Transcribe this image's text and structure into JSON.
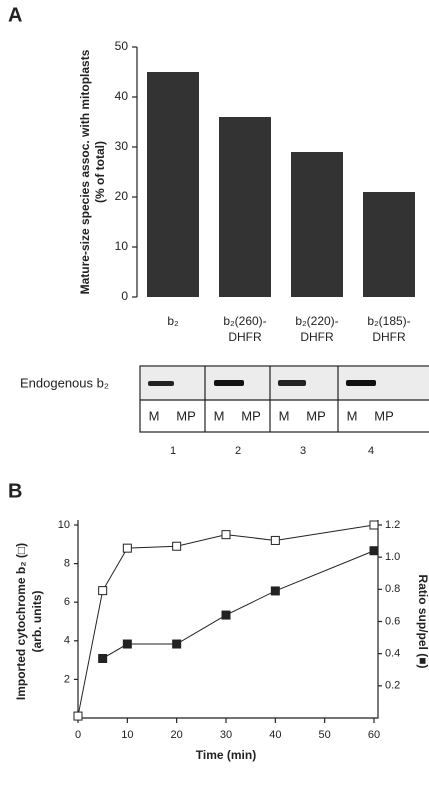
{
  "panels": [
    "A",
    "B"
  ],
  "gel": {
    "label": "Endogenous b₂",
    "lanes": [
      {
        "fractions": [
          "M",
          "MP"
        ],
        "number": "1"
      },
      {
        "fractions": [
          "M",
          "MP"
        ],
        "number": "2"
      },
      {
        "fractions": [
          "M",
          "MP"
        ],
        "number": "3"
      },
      {
        "fractions": [
          "M",
          "MP"
        ],
        "number": "4"
      }
    ]
  },
  "chart_data": [
    {
      "type": "bar",
      "ylabel": [
        "Mature-size species assoc. with mitoplasts",
        "(% of total)"
      ],
      "categories": [
        [
          "b₂"
        ],
        [
          "b₂(260)-",
          "DHFR"
        ],
        [
          "b₂(220)-",
          "DHFR"
        ],
        [
          "b₂(185)-",
          "DHFR"
        ]
      ],
      "values": [
        45,
        36,
        29,
        21
      ],
      "color": "#333333",
      "ylim": [
        0,
        50
      ],
      "yticks": [
        0,
        10,
        20,
        30,
        40,
        50
      ]
    },
    {
      "type": "line",
      "xlabel": "Time (min)",
      "ylabel": [
        "Imported cytochrome b₂ (□)",
        "(arb. units)"
      ],
      "y2label": "Ratio sup/pel (■)",
      "xlim": [
        0,
        60
      ],
      "xticks": [
        0,
        10,
        20,
        30,
        40,
        50,
        60
      ],
      "ylim": [
        0,
        10
      ],
      "yticks": [
        2,
        4,
        6,
        8,
        10
      ],
      "y2lim": [
        0,
        1.2
      ],
      "y2ticks": [
        0.2,
        0.4,
        0.6,
        {
          "value": 1,
          "label": "1.0"
        },
        0.8,
        1.2
      ],
      "series": [
        {
          "marker": "open",
          "color": "#222222",
          "x": [
            0,
            5,
            10,
            20,
            30,
            40,
            60
          ],
          "values": [
            0.1,
            6.6,
            8.8,
            8.9,
            9.5,
            9.2,
            10
          ]
        },
        {
          "marker": "filled",
          "color": "#222222",
          "axis": "y2",
          "x": [
            5,
            10,
            20,
            30,
            40,
            60
          ],
          "values": [
            0.37,
            0.46,
            0.46,
            0.64,
            0.79,
            1.04
          ]
        }
      ]
    }
  ]
}
